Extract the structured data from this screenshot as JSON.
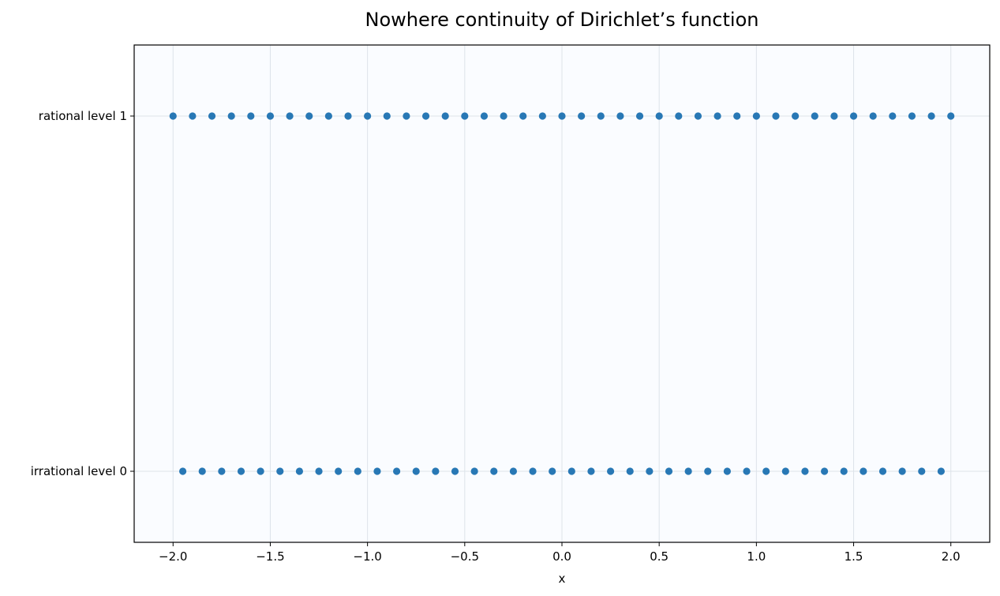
{
  "chart_data": {
    "type": "scatter",
    "title": "Nowhere continuity of Dirichlet’s function",
    "xlabel": "x",
    "ylabel": "",
    "xlim": [
      -2.2,
      2.2
    ],
    "ylim": [
      -0.2,
      1.2
    ],
    "grid": true,
    "background": "#fafcff",
    "marker_color": "#2878b5",
    "xticks": [
      -2.0,
      -1.5,
      -1.0,
      -0.5,
      0.0,
      0.5,
      1.0,
      1.5,
      2.0
    ],
    "xtick_labels": [
      "−2.0",
      "−1.5",
      "−1.0",
      "−0.5",
      "0.0",
      "0.5",
      "1.0",
      "1.5",
      "2.0"
    ],
    "yticks": [
      1,
      0
    ],
    "ytick_labels": [
      "rational level 1",
      "irrational level 0"
    ],
    "series": [
      {
        "x": [
          -2.0,
          -1.9,
          -1.8,
          -1.7,
          -1.6,
          -1.5,
          -1.4,
          -1.3,
          -1.2,
          -1.1,
          -1.0,
          -0.9,
          -0.8,
          -0.7,
          -0.6,
          -0.5,
          -0.4,
          -0.3,
          -0.2,
          -0.1,
          0.0,
          0.1,
          0.2,
          0.3,
          0.4,
          0.5,
          0.6,
          0.7,
          0.8,
          0.9,
          1.0,
          1.1,
          1.2,
          1.3,
          1.4,
          1.5,
          1.6,
          1.7,
          1.8,
          1.9,
          2.0
        ],
        "y": 1
      },
      {
        "x": [
          -1.95,
          -1.85,
          -1.75,
          -1.65,
          -1.55,
          -1.45,
          -1.35,
          -1.25,
          -1.15,
          -1.05,
          -0.95,
          -0.85,
          -0.75,
          -0.65,
          -0.55,
          -0.45,
          -0.35,
          -0.25,
          -0.15,
          -0.05,
          0.05,
          0.15,
          0.25,
          0.35,
          0.45,
          0.55,
          0.65,
          0.75,
          0.85,
          0.95,
          1.05,
          1.15,
          1.25,
          1.35,
          1.45,
          1.55,
          1.65,
          1.75,
          1.85,
          1.95
        ],
        "y": 0
      }
    ]
  }
}
